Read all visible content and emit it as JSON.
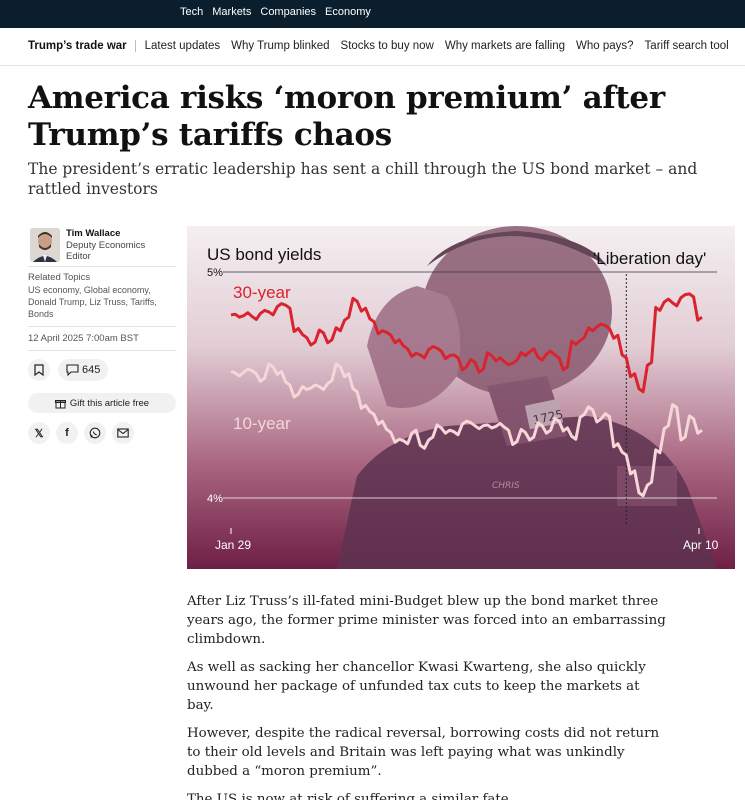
{
  "topnav": {
    "items": [
      "Tech",
      "Markets",
      "Companies",
      "Economy"
    ]
  },
  "subnav": {
    "brand": "Trump’s trade war",
    "links": [
      "Latest updates",
      "Why Trump blinked",
      "Stocks to buy now",
      "Why markets are falling",
      "Who pays?",
      "Tariff search tool"
    ]
  },
  "article": {
    "headline": "America risks ‘moron premium’ after Trump’s tariffs chaos",
    "standfirst": "The president’s erratic leadership has sent a chill through the US bond market – and rattled investors",
    "author": {
      "name": "Tim Wallace",
      "role": "Deputy Economics Editor"
    },
    "related_title": "Related Topics",
    "related_topics": "US economy, Global economy, Donald Trump, Liz Truss, Tariffs, Bonds",
    "date": "12 April 2025 7:00am BST",
    "comment_count": "645",
    "gift_label": "Gift this article free",
    "share_icons": [
      "x-icon",
      "facebook-icon",
      "whatsapp-icon",
      "email-icon"
    ],
    "paragraphs": [
      "After Liz Truss’s ill-fated mini-Budget blew up the bond market three years ago, the former prime minister was forced into an embarrassing climbdown.",
      "As well as sacking her chancellor Kwasi Kwarteng, she also quickly unwound her package of unfunded tax cuts to keep the markets at bay.",
      "However, despite the radical reversal, borrowing costs did not return to their old levels and Britain was left paying what was unkindly dubbed a “moron premium”.",
      "The US is now at risk of suffering a similar fate."
    ]
  },
  "colors": {
    "topbar": "#0b1e2d",
    "series_30": "#d9232e",
    "series_10": "#f6d6d8",
    "chart_bg_top": "#f3eef0",
    "chart_bg_bottom": "#6e1f45"
  },
  "chart_data": {
    "type": "line",
    "title": "US bond yields",
    "annotation": "'Liberation day'",
    "x_start_label": "Jan 29",
    "x_end_label": "Apr 10",
    "y_ticks": [
      "5%",
      "4%"
    ],
    "ylim": [
      4.0,
      5.0
    ],
    "series": [
      {
        "name": "30-year",
        "values": [
          4.81,
          4.8,
          4.82,
          4.79,
          4.83,
          4.81,
          4.86,
          4.84,
          4.75,
          4.71,
          4.69,
          4.73,
          4.7,
          4.74,
          4.8,
          4.87,
          4.84,
          4.78,
          4.74,
          4.72,
          4.7,
          4.66,
          4.64,
          4.62,
          4.67,
          4.65,
          4.63,
          4.62,
          4.58,
          4.6,
          4.57,
          4.63,
          4.62,
          4.59,
          4.61,
          4.63,
          4.66,
          4.61,
          4.65,
          4.62,
          4.58,
          4.68,
          4.71,
          4.74,
          4.77,
          4.75,
          4.72,
          4.62,
          4.55,
          4.47,
          4.6,
          4.83,
          4.88,
          4.85,
          4.9,
          4.89,
          4.8
        ]
      },
      {
        "name": "10-year",
        "values": [
          4.56,
          4.54,
          4.57,
          4.55,
          4.53,
          4.58,
          4.56,
          4.5,
          4.46,
          4.48,
          4.5,
          4.48,
          4.52,
          4.58,
          4.55,
          4.47,
          4.41,
          4.37,
          4.34,
          4.29,
          4.26,
          4.24,
          4.3,
          4.22,
          4.27,
          4.31,
          4.3,
          4.28,
          4.34,
          4.32,
          4.32,
          4.31,
          4.33,
          4.3,
          4.25,
          4.29,
          4.27,
          4.32,
          4.3,
          4.34,
          4.31,
          4.26,
          4.37,
          4.39,
          4.35,
          4.36,
          4.24,
          4.19,
          4.12,
          4.01,
          4.07,
          4.2,
          4.32,
          4.4,
          4.27,
          4.35,
          4.3
        ]
      }
    ],
    "liberation_day_index": 47
  }
}
